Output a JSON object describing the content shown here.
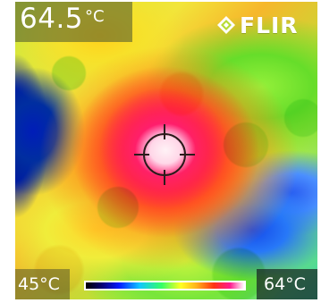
{
  "overlay": {
    "temperature_value": "64.5",
    "temperature_unit": "°C",
    "brand": "FLIR"
  },
  "scale": {
    "min_label": "45°C",
    "max_label": "64°C",
    "colors": [
      "#000000",
      "#080070",
      "#061bff",
      "#0fc7ff",
      "#35ff65",
      "#ffff21",
      "#ffb11a",
      "#ff3212",
      "#ff1a8d",
      "#ffffff"
    ]
  },
  "icons": {
    "logo": "flir-diamond-icon",
    "measurement": "crosshair-icon"
  }
}
